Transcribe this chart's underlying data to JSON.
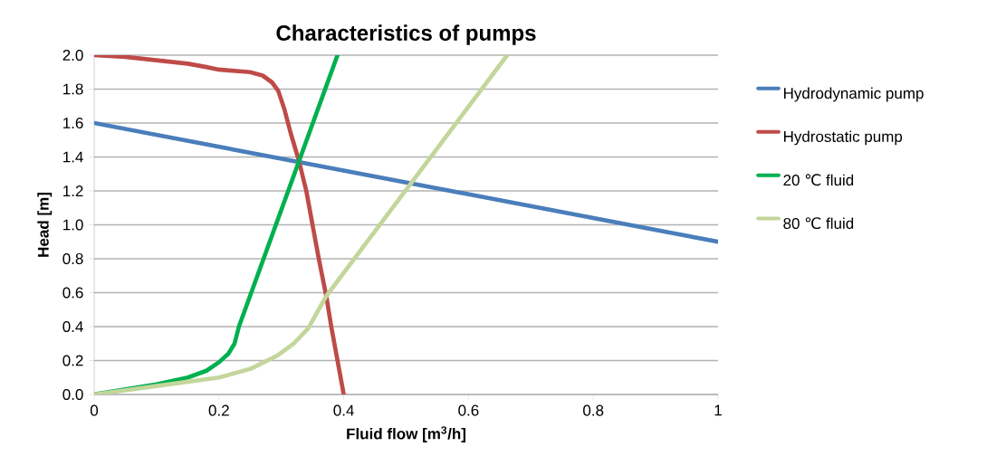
{
  "chart_data": {
    "type": "line",
    "title": "Characteristics of pumps",
    "xlabel": "Fluid flow [m$^{3}$/h]",
    "ylabel": "Head [m]",
    "xlim": [
      0,
      1
    ],
    "ylim": [
      0,
      2.0
    ],
    "xticks": [
      0,
      {
        "value": 0.2,
        "label": "0.2"
      },
      {
        "value": 0.4,
        "label": "0.4"
      },
      {
        "value": 0.6,
        "label": "0.6"
      },
      {
        "value": 0.8,
        "label": "0.8"
      },
      1
    ],
    "yticks": [
      {
        "value": 0,
        "label": "0.0"
      },
      {
        "value": 0.2,
        "label": "0.2"
      },
      {
        "value": 0.4,
        "label": "0.4"
      },
      {
        "value": 0.6,
        "label": "0.6"
      },
      {
        "value": 0.8,
        "label": "0.8"
      },
      {
        "value": 1.0,
        "label": "1.0"
      },
      {
        "value": 1.2,
        "label": "1.2"
      },
      {
        "value": 1.4,
        "label": "1.4"
      },
      {
        "value": 1.6,
        "label": "1.6"
      },
      {
        "value": 1.8,
        "label": "1.8"
      },
      {
        "value": 2.0,
        "label": "2.0"
      }
    ],
    "grid": "y",
    "legend": "right",
    "marker": "none",
    "line_style": "solid",
    "series": [
      {
        "name": "Hydrodynamic pump",
        "color": "#4a7ebb",
        "x": [
          0,
          1
        ],
        "values": [
          1.6,
          0.9
        ]
      },
      {
        "name": "Hydrostatic pump",
        "color": "#be4b48",
        "x": [
          0,
          0.05,
          0.1,
          0.15,
          0.18,
          0.2,
          0.25,
          0.27,
          0.285,
          0.295,
          0.305,
          0.315,
          0.328,
          0.34,
          0.35,
          0.36,
          0.372,
          0.38,
          0.39,
          0.4
        ],
        "values": [
          2.0,
          1.99,
          1.97,
          1.95,
          1.93,
          1.915,
          1.9,
          1.88,
          1.84,
          1.79,
          1.68,
          1.54,
          1.38,
          1.2,
          1.0,
          0.8,
          0.58,
          0.4,
          0.2,
          0.0
        ]
      },
      {
        "name": "20 ℃ fluid",
        "color": "#00b050",
        "x": [
          0,
          0.1,
          0.15,
          0.18,
          0.2,
          0.215,
          0.225,
          0.232,
          0.39
        ],
        "values": [
          0,
          0.06,
          0.1,
          0.14,
          0.19,
          0.24,
          0.3,
          0.4,
          2.0
        ]
      },
      {
        "name": "80 ℃ fluid",
        "color": "#c3d69b",
        "x": [
          0,
          0.1,
          0.2,
          0.25,
          0.294,
          0.32,
          0.343,
          0.372,
          0.662
        ],
        "values": [
          0,
          0.05,
          0.1,
          0.15,
          0.23,
          0.3,
          0.39,
          0.58,
          2.0
        ]
      }
    ]
  }
}
